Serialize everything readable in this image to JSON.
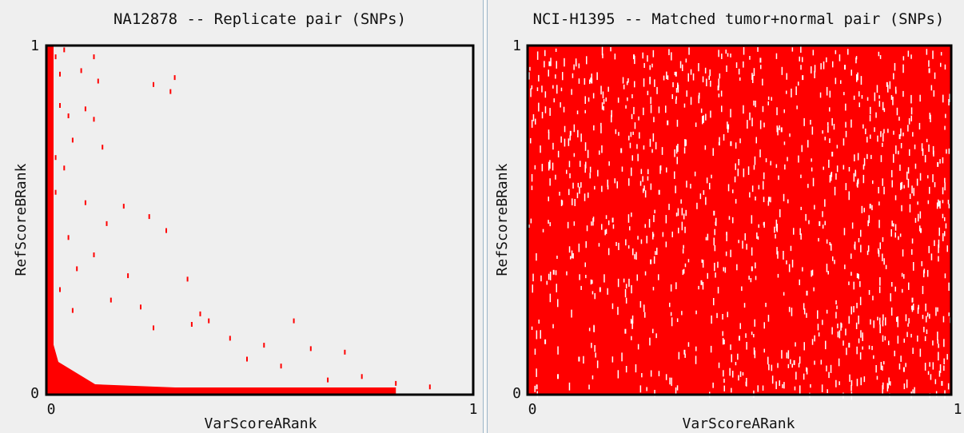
{
  "chart_data": [
    {
      "type": "scatter",
      "title": "NA12878 -- Replicate pair (SNPs)",
      "xlabel": "VarScoreARank",
      "ylabel": "RefScoreBRank",
      "xlim": [
        0,
        1
      ],
      "ylim": [
        0,
        1
      ],
      "xticks": [
        "0",
        "1"
      ],
      "yticks": [
        "0",
        "1"
      ],
      "color": "#ff0000",
      "series": [
        {
          "distribution": "concentrated along the x=0 and y=0 axes, sparse elsewhere",
          "points": [
            [
              0.005,
              0.98
            ],
            [
              0.01,
              0.95
            ],
            [
              0.02,
              0.97
            ],
            [
              0.04,
              0.99
            ],
            [
              0.11,
              0.97
            ],
            [
              0.03,
              0.92
            ],
            [
              0.08,
              0.93
            ],
            [
              0.12,
              0.9
            ],
            [
              0.25,
              0.89
            ],
            [
              0.29,
              0.87
            ],
            [
              0.3,
              0.91
            ],
            [
              0.01,
              0.85
            ],
            [
              0.03,
              0.83
            ],
            [
              0.05,
              0.8
            ],
            [
              0.09,
              0.82
            ],
            [
              0.11,
              0.79
            ],
            [
              0.13,
              0.71
            ],
            [
              0.06,
              0.73
            ],
            [
              0.02,
              0.68
            ],
            [
              0.04,
              0.65
            ],
            [
              0.18,
              0.54
            ],
            [
              0.24,
              0.51
            ],
            [
              0.09,
              0.55
            ],
            [
              0.14,
              0.49
            ],
            [
              0.02,
              0.58
            ],
            [
              0.05,
              0.45
            ],
            [
              0.11,
              0.4
            ],
            [
              0.28,
              0.47
            ],
            [
              0.19,
              0.34
            ],
            [
              0.33,
              0.33
            ],
            [
              0.07,
              0.36
            ],
            [
              0.03,
              0.3
            ],
            [
              0.15,
              0.27
            ],
            [
              0.22,
              0.25
            ],
            [
              0.06,
              0.24
            ],
            [
              0.36,
              0.23
            ],
            [
              0.38,
              0.21
            ],
            [
              0.25,
              0.19
            ],
            [
              0.34,
              0.2
            ],
            [
              0.58,
              0.21
            ],
            [
              0.43,
              0.16
            ],
            [
              0.51,
              0.14
            ],
            [
              0.62,
              0.13
            ],
            [
              0.7,
              0.12
            ],
            [
              0.55,
              0.08
            ],
            [
              0.47,
              0.1
            ],
            [
              0.74,
              0.05
            ],
            [
              0.82,
              0.03
            ],
            [
              0.9,
              0.02
            ],
            [
              0.66,
              0.04
            ]
          ]
        }
      ]
    },
    {
      "type": "scatter",
      "title": "NCI-H1395 -- Matched tumor+normal pair (SNPs)",
      "xlabel": "VarScoreARank",
      "ylabel": "RefScoreBRank",
      "xlim": [
        0,
        1
      ],
      "ylim": [
        0,
        1
      ],
      "xticks": [
        "0",
        "1"
      ],
      "yticks": [
        "0",
        "1"
      ],
      "color": "#ff0000",
      "series": [
        {
          "distribution": "dense across the whole unit square, densest near the origin",
          "points": [
            [
              0.05,
              0.95
            ],
            [
              0.15,
              0.9
            ],
            [
              0.25,
              0.97
            ],
            [
              0.35,
              0.92
            ],
            [
              0.45,
              0.88
            ],
            [
              0.55,
              0.96
            ],
            [
              0.65,
              0.91
            ],
            [
              0.75,
              0.94
            ],
            [
              0.85,
              0.89
            ],
            [
              0.95,
              0.93
            ],
            [
              0.1,
              0.75
            ],
            [
              0.22,
              0.7
            ],
            [
              0.33,
              0.78
            ],
            [
              0.48,
              0.72
            ],
            [
              0.6,
              0.76
            ],
            [
              0.72,
              0.69
            ],
            [
              0.88,
              0.74
            ],
            [
              0.97,
              0.66
            ],
            [
              0.08,
              0.55
            ],
            [
              0.2,
              0.5
            ],
            [
              0.31,
              0.58
            ],
            [
              0.44,
              0.52
            ],
            [
              0.57,
              0.56
            ],
            [
              0.69,
              0.49
            ],
            [
              0.81,
              0.54
            ],
            [
              0.93,
              0.47
            ],
            [
              0.06,
              0.35
            ],
            [
              0.17,
              0.3
            ],
            [
              0.29,
              0.38
            ],
            [
              0.41,
              0.32
            ],
            [
              0.53,
              0.36
            ],
            [
              0.66,
              0.29
            ],
            [
              0.78,
              0.34
            ],
            [
              0.91,
              0.27
            ],
            [
              0.04,
              0.15
            ],
            [
              0.12,
              0.1
            ],
            [
              0.23,
              0.18
            ],
            [
              0.37,
              0.12
            ],
            [
              0.5,
              0.16
            ],
            [
              0.63,
              0.09
            ],
            [
              0.76,
              0.14
            ],
            [
              0.89,
              0.07
            ],
            [
              0.98,
              0.03
            ],
            [
              0.02,
              0.02
            ],
            [
              0.07,
              0.05
            ]
          ]
        }
      ]
    }
  ]
}
